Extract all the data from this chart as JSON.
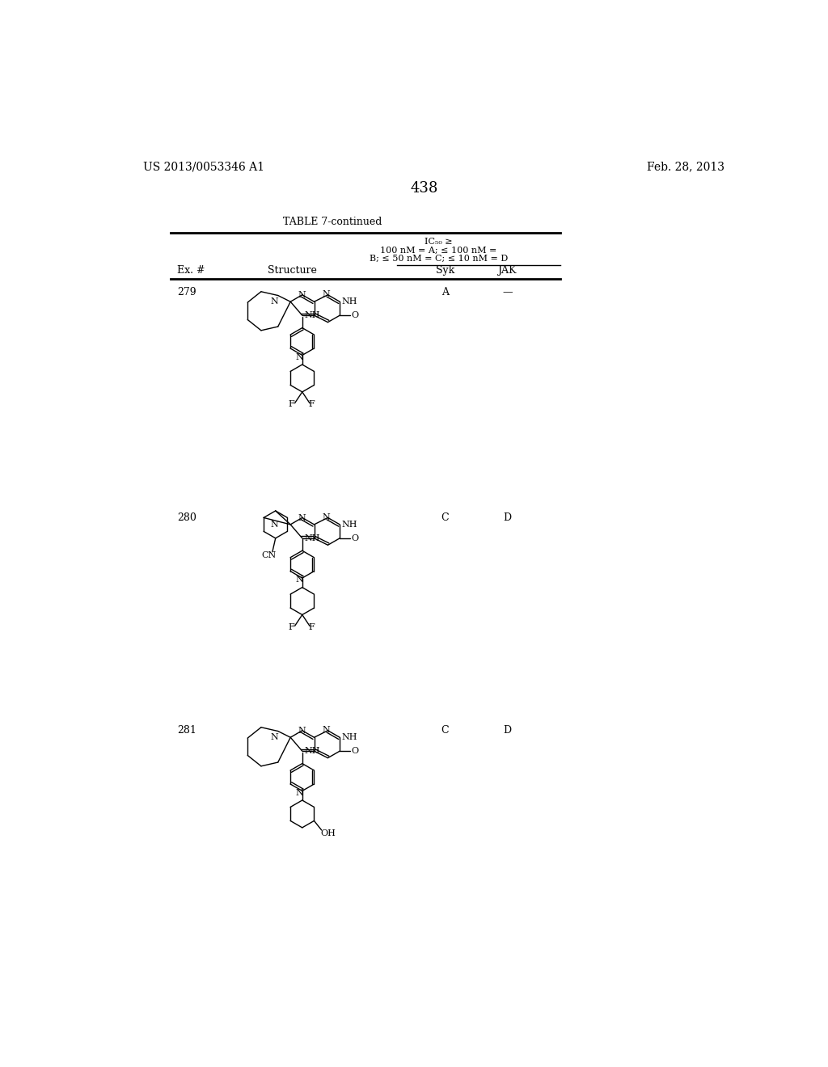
{
  "page_number": "438",
  "patent_number": "US 2013/0053346 A1",
  "patent_date": "Feb. 28, 2013",
  "table_title": "TABLE 7-continued",
  "header_col1": "Ex. #",
  "header_col2": "Structure",
  "header_col3": "Syk",
  "header_col4": "JAK",
  "ic50_line1": "IC₅₀ ≥",
  "ic50_line2": "100 nM = A; ≤ 100 nM =",
  "ic50_line3": "B; ≤ 50 nM = C; ≤ 10 nM = D",
  "rows": [
    {
      "ex_num": "279",
      "syk": "A",
      "jak": "—"
    },
    {
      "ex_num": "280",
      "syk": "C",
      "jak": "D"
    },
    {
      "ex_num": "281",
      "syk": "C",
      "jak": "D"
    }
  ],
  "bg_color": "#ffffff",
  "text_color": "#000000",
  "line_color": "#000000"
}
